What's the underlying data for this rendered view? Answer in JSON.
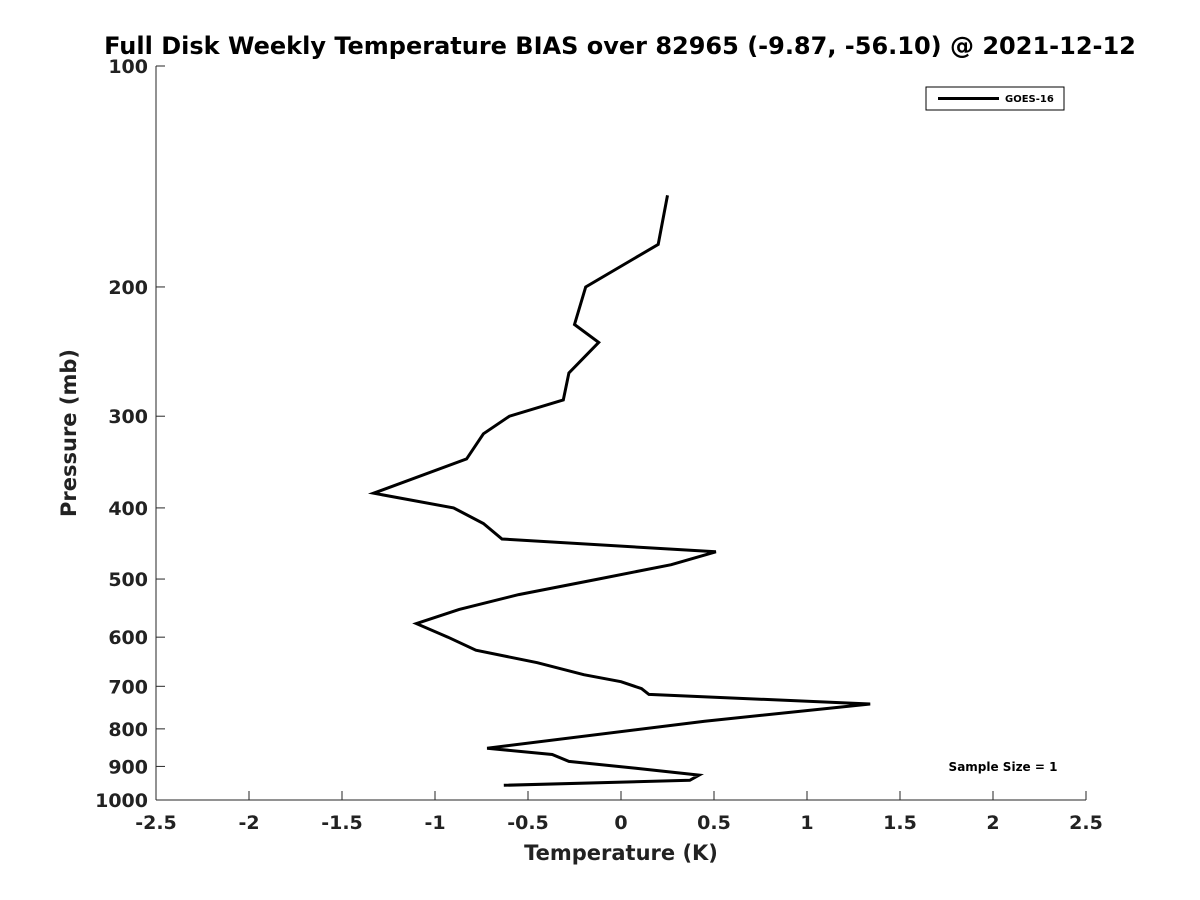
{
  "chart_data": {
    "type": "line",
    "title": "Full Disk Weekly Temperature BIAS over 82965 (-9.87, -56.10) @ 2021-12-12",
    "xlabel": "Temperature (K)",
    "ylabel": "Pressure (mb)",
    "xlim": [
      -2.5,
      2.5
    ],
    "ylim": [
      100,
      1000
    ],
    "y_scale": "log",
    "y_reversed": true,
    "grid": false,
    "legend_position": "top-right",
    "x_ticks": [
      "-2.5",
      "-2",
      "-1.5",
      "-1",
      "-0.5",
      "0",
      "0.5",
      "1",
      "1.5",
      "2",
      "2.5"
    ],
    "y_ticks": [
      "100",
      "200",
      "300",
      "400",
      "500",
      "600",
      "700",
      "800",
      "900",
      "1000"
    ],
    "annotation": "Sample Size = 1",
    "series": [
      {
        "name": "GOES-16",
        "color": "#000000",
        "points": [
          [
            0.25,
            150
          ],
          [
            0.2,
            175
          ],
          [
            -0.19,
            200
          ],
          [
            -0.25,
            225
          ],
          [
            -0.12,
            238
          ],
          [
            -0.28,
            262
          ],
          [
            -0.31,
            285
          ],
          [
            -0.6,
            300
          ],
          [
            -0.74,
            317
          ],
          [
            -0.83,
            343
          ],
          [
            -1.33,
            382
          ],
          [
            -0.9,
            400
          ],
          [
            -0.74,
            420
          ],
          [
            -0.64,
            441
          ],
          [
            0.51,
            459
          ],
          [
            0.27,
            478
          ],
          [
            -0.12,
            500
          ],
          [
            -0.55,
            525
          ],
          [
            -0.87,
            550
          ],
          [
            -1.1,
            575
          ],
          [
            -0.93,
            600
          ],
          [
            -0.78,
            625
          ],
          [
            -0.45,
            650
          ],
          [
            -0.2,
            675
          ],
          [
            0.0,
            690
          ],
          [
            0.11,
            705
          ],
          [
            0.15,
            718
          ],
          [
            1.34,
            740
          ],
          [
            0.45,
            781
          ],
          [
            -0.72,
            850
          ],
          [
            -0.37,
            867
          ],
          [
            -0.28,
            886
          ],
          [
            0.08,
            905
          ],
          [
            0.42,
            925
          ],
          [
            0.37,
            940
          ],
          [
            -0.63,
            955
          ]
        ]
      }
    ]
  }
}
